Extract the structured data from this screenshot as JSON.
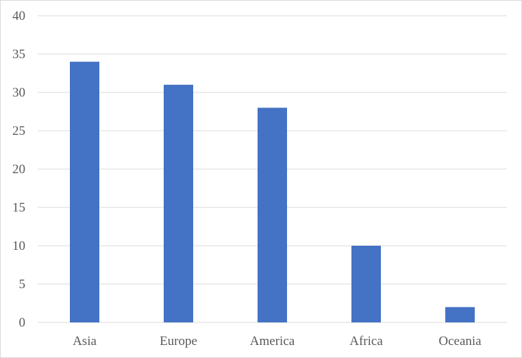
{
  "chart_data": {
    "type": "bar",
    "categories": [
      "Asia",
      "Europe",
      "America",
      "Africa",
      "Oceania"
    ],
    "values": [
      34,
      31,
      28,
      10,
      2
    ],
    "title": "",
    "xlabel": "",
    "ylabel": "",
    "ylim": [
      0,
      40
    ],
    "yticks": [
      0,
      5,
      10,
      15,
      20,
      25,
      30,
      35,
      40
    ],
    "grid": true,
    "legend": "none",
    "bar_color": "#4472C4",
    "grid_color": "#d9d9d9",
    "text_color": "#595959"
  }
}
